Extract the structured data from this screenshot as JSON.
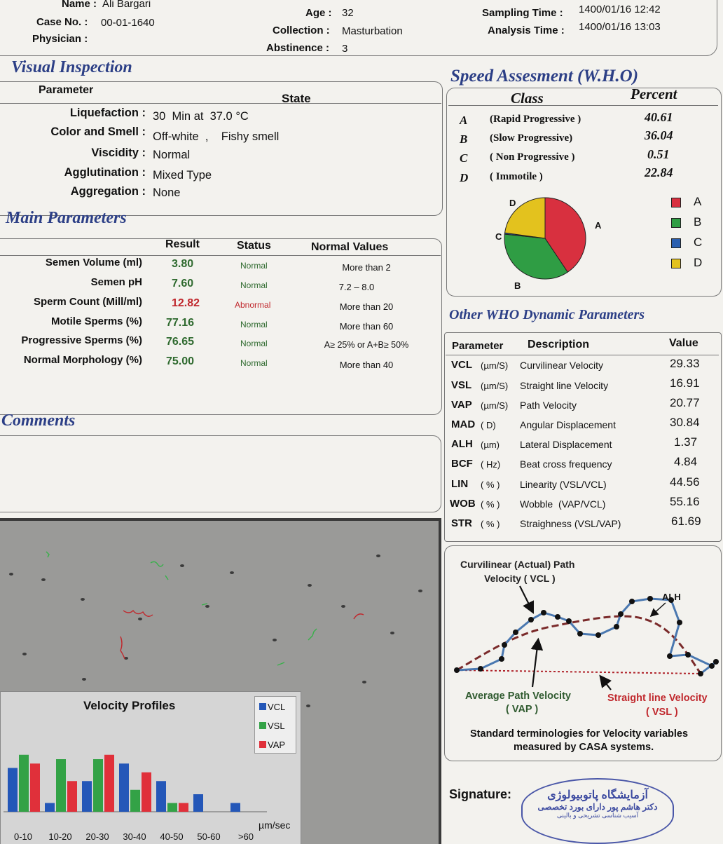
{
  "header": {
    "name_label": "Name :",
    "name_value": "Ali Bargari",
    "case_label": "Case No. :",
    "case_value": "00-01-1640",
    "physician_label": "Physician :",
    "physician_value": "",
    "age_label": "Age :",
    "age_value": "32",
    "collection_label": "Collection :",
    "collection_value": "Masturbation",
    "abstinence_label": "Abstinence :",
    "abstinence_value": "3",
    "sampling_label": "Sampling Time :",
    "sampling_value": "1400/01/16 12:42",
    "analysis_label": "Analysis Time :",
    "analysis_value": "1400/01/16 13:03"
  },
  "visual": {
    "title": "Visual Inspection",
    "col_param": "Parameter",
    "col_state": "State",
    "rows": [
      {
        "label": "Liquefaction :",
        "value": "30  Min at  37.0 °C"
      },
      {
        "label": "Color and Smell :",
        "value": "Off-white  ,    Fishy smell"
      },
      {
        "label": "Viscidity :",
        "value": "Normal"
      },
      {
        "label": "Agglutination :",
        "value": "Mixed Type"
      },
      {
        "label": "Aggregation :",
        "value": "None"
      }
    ]
  },
  "main": {
    "title": "Main Parameters",
    "col_result": "Result",
    "col_status": "Status",
    "col_normal": "Normal Values",
    "rows": [
      {
        "label": "Semen Volume (ml)",
        "result": "3.80",
        "status": "Normal",
        "normal": "More than  2"
      },
      {
        "label": "Semen pH",
        "result": "7.60",
        "status": "Normal",
        "normal": "7.2 – 8.0"
      },
      {
        "label": "Sperm Count (Mill/ml)",
        "result": "12.82",
        "status": "Abnormal",
        "normal": "More than  20"
      },
      {
        "label": "Motile Sperms (%)",
        "result": "77.16",
        "status": "Normal",
        "normal": "More than 60"
      },
      {
        "label": "Progressive Sperms (%)",
        "result": "76.65",
        "status": "Normal",
        "normal": "A≥ 25% or A+B≥ 50%"
      },
      {
        "label": "Normal Morphology (%)",
        "result": "75.00",
        "status": "Normal",
        "normal": "More than  40"
      }
    ]
  },
  "comments": {
    "title": "Comments",
    "text": ""
  },
  "speed": {
    "title": "Speed Assesment (W.H.O)",
    "col_class": "Class",
    "col_percent": "Percent",
    "rows": [
      {
        "letter": "A",
        "desc": "(Rapid Progressive )",
        "percent": "40.61"
      },
      {
        "letter": "B",
        "desc": "(Slow Progressive)",
        "percent": "36.04"
      },
      {
        "letter": "C",
        "desc": "( Non Progressive )",
        "percent": "0.51"
      },
      {
        "letter": "D",
        "desc": "( Immotile )",
        "percent": "22.84"
      }
    ],
    "pie_labels": [
      "A",
      "B",
      "C",
      "D"
    ],
    "legend": [
      {
        "label": "A",
        "color": "#d8303f"
      },
      {
        "label": "B",
        "color": "#2f9d44"
      },
      {
        "label": "C",
        "color": "#2a5fb0"
      },
      {
        "label": "D",
        "color": "#e3c21e"
      }
    ]
  },
  "chart_data": [
    {
      "type": "pie",
      "categories": [
        "A",
        "B",
        "C",
        "D"
      ],
      "values": [
        40.61,
        36.04,
        0.51,
        22.84
      ],
      "colors": [
        "#d8303f",
        "#2f9d44",
        "#2a5fb0",
        "#e3c21e"
      ],
      "legend": "right"
    },
    {
      "type": "bar",
      "title": "Velocity Profiles",
      "xlabel": "µm/sec",
      "categories": [
        "0-10",
        "10-20",
        "20-30",
        "30-40",
        "40-50",
        "50-60",
        ">60"
      ],
      "series": [
        {
          "name": "VCL",
          "color": "#2457b8",
          "values": [
            10,
            2,
            7,
            11,
            7,
            4,
            2
          ]
        },
        {
          "name": "VSL",
          "color": "#33a246",
          "values": [
            13,
            12,
            12,
            5,
            2,
            0,
            0
          ]
        },
        {
          "name": "VAP",
          "color": "#e0303a",
          "values": [
            11,
            7,
            13,
            9,
            2,
            0,
            0
          ]
        }
      ],
      "legend": "top-right",
      "ylim": [
        0,
        16
      ]
    }
  ],
  "other": {
    "title": "Other WHO Dynamic Parameters",
    "col_param": "Parameter",
    "col_desc": "Description",
    "col_value": "Value",
    "rows": [
      {
        "code": "VCL",
        "unit": "(µm/S)",
        "desc": "Curvilinear Velocity",
        "value": "29.33"
      },
      {
        "code": "VSL",
        "unit": "(µm/S)",
        "desc": "Straight line Velocity",
        "value": "16.91"
      },
      {
        "code": "VAP",
        "unit": "(µm/S)",
        "desc": "Path Velocity",
        "value": "20.77"
      },
      {
        "code": "MAD",
        "unit": "( D)",
        "desc": "Angular Displacement",
        "value": "30.84"
      },
      {
        "code": "ALH",
        "unit": "(µm)",
        "desc": "Lateral Displacement",
        "value": "1.37"
      },
      {
        "code": "BCF",
        "unit": "( Hz)",
        "desc": "Beat cross frequency",
        "value": "4.84"
      },
      {
        "code": "LIN",
        "unit": "( % )",
        "desc": "Linearity (VSL/VCL)",
        "value": "44.56"
      },
      {
        "code": "WOB",
        "unit": "( % )",
        "desc": "Wobble  (VAP/VCL)",
        "value": "55.16"
      },
      {
        "code": "STR",
        "unit": "( % )",
        "desc": "Straighness (VSL/VAP)",
        "value": "61.69"
      }
    ]
  },
  "diagram": {
    "vcl_title": "Curvilinear (Actual) Path",
    "vcl_title2": "Velocity ( VCL )",
    "alh": "ALH",
    "vap_title": "Average Path Velocity",
    "vap_title2": "( VAP )",
    "vsl_title": "Straight line Velocity",
    "vsl_title2": "( VSL )",
    "caption1": "Standard terminologies for Velocity variables",
    "caption2": "measured by CASA systems."
  },
  "signature": {
    "label": "Signature:",
    "stamp_lines": [
      "آزمایشگاه پاتوبیولوژی",
      "دکتر هاشم پور دارای بورد تخصصی",
      "آسیب شناسی تشریحی و بالینی"
    ]
  },
  "velocity_panel": {
    "title": "Velocity Profiles",
    "unit": "µm/sec"
  }
}
